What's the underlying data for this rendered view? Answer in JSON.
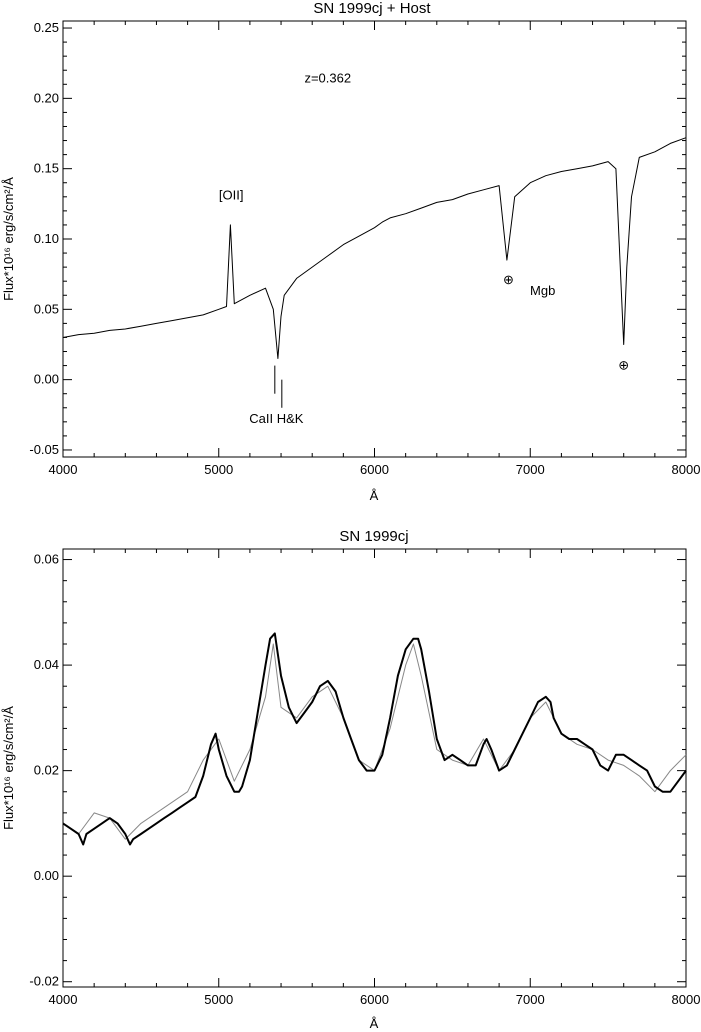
{
  "chart_data": [
    {
      "type": "line",
      "title": "SN 1999cj + Host",
      "xlabel": "Å",
      "ylabel": "Flux*10¹⁶ erg/s/cm²/Å",
      "xlim": [
        4000,
        8000
      ],
      "ylim": [
        -0.055,
        0.255
      ],
      "x_ticks": [
        4000,
        5000,
        6000,
        7000,
        8000
      ],
      "y_ticks": [
        -0.05,
        0.0,
        0.05,
        0.1,
        0.15,
        0.2,
        0.25
      ],
      "y_tick_labels": [
        "-0.05",
        "0.00",
        "0.05",
        "0.10",
        "0.15",
        "0.20",
        "0.25"
      ],
      "annotations": [
        {
          "text": "z=0.362",
          "x": 5700,
          "y": 0.214
        },
        {
          "text": "[OII]",
          "x": 5080,
          "y": 0.131
        },
        {
          "text": "CaII H&K",
          "x": 5370,
          "y": -0.028
        },
        {
          "text": "Mgb",
          "x": 7080,
          "y": 0.063
        },
        {
          "text": "⊕",
          "x": 6860,
          "y": 0.071
        },
        {
          "text": "⊕",
          "x": 7600,
          "y": 0.01
        }
      ],
      "line_marks": [
        {
          "x": 5360,
          "y1": -0.01,
          "y2": 0.01
        },
        {
          "x": 5405,
          "y1": -0.02,
          "y2": 0.0
        }
      ],
      "series": [
        {
          "color": "#000000",
          "x": [
            4000,
            4100,
            4200,
            4300,
            4400,
            4500,
            4600,
            4700,
            4800,
            4900,
            5000,
            5050,
            5075,
            5100,
            5200,
            5300,
            5350,
            5380,
            5400,
            5420,
            5500,
            5600,
            5700,
            5800,
            5900,
            6000,
            6050,
            6100,
            6200,
            6300,
            6400,
            6500,
            6600,
            6700,
            6800,
            6850,
            6900,
            7000,
            7100,
            7200,
            7300,
            7400,
            7500,
            7550,
            7600,
            7620,
            7650,
            7700,
            7800,
            7900,
            8000
          ],
          "y": [
            0.03,
            0.032,
            0.033,
            0.035,
            0.036,
            0.038,
            0.04,
            0.042,
            0.044,
            0.046,
            0.05,
            0.052,
            0.11,
            0.054,
            0.06,
            0.065,
            0.05,
            0.015,
            0.045,
            0.06,
            0.072,
            0.08,
            0.088,
            0.096,
            0.102,
            0.108,
            0.112,
            0.115,
            0.118,
            0.122,
            0.126,
            0.128,
            0.132,
            0.135,
            0.138,
            0.085,
            0.13,
            0.14,
            0.145,
            0.148,
            0.15,
            0.152,
            0.155,
            0.15,
            0.025,
            0.08,
            0.13,
            0.158,
            0.162,
            0.168,
            0.172
          ]
        }
      ]
    },
    {
      "type": "line",
      "title": "SN 1999cj",
      "xlabel": "Å",
      "ylabel": "Flux*10¹⁶ erg/s/cm²/Å",
      "xlim": [
        4000,
        8000
      ],
      "ylim": [
        -0.021,
        0.062
      ],
      "x_ticks": [
        4000,
        5000,
        6000,
        7000,
        8000
      ],
      "y_ticks": [
        -0.02,
        0.0,
        0.02,
        0.04,
        0.06
      ],
      "y_tick_labels": [
        "-0.02",
        "0.00",
        "0.02",
        "0.04",
        "0.06"
      ],
      "series": [
        {
          "color": "#888888",
          "x": [
            4000,
            4100,
            4200,
            4300,
            4400,
            4500,
            4600,
            4700,
            4800,
            4900,
            5000,
            5100,
            5200,
            5300,
            5350,
            5400,
            5500,
            5600,
            5700,
            5800,
            5900,
            6000,
            6100,
            6200,
            6250,
            6300,
            6400,
            6500,
            6600,
            6700,
            6800,
            6900,
            7000,
            7100,
            7200,
            7300,
            7400,
            7500,
            7600,
            7700,
            7800,
            7900,
            8000
          ],
          "y": [
            0.01,
            0.008,
            0.012,
            0.011,
            0.007,
            0.01,
            0.012,
            0.014,
            0.016,
            0.022,
            0.026,
            0.018,
            0.024,
            0.034,
            0.044,
            0.032,
            0.03,
            0.034,
            0.036,
            0.03,
            0.022,
            0.02,
            0.028,
            0.04,
            0.044,
            0.038,
            0.024,
            0.022,
            0.021,
            0.026,
            0.02,
            0.024,
            0.03,
            0.033,
            0.027,
            0.025,
            0.024,
            0.022,
            0.021,
            0.019,
            0.016,
            0.02,
            0.023
          ]
        },
        {
          "color": "#000000",
          "x": [
            4000,
            4050,
            4100,
            4130,
            4150,
            4200,
            4250,
            4300,
            4350,
            4400,
            4430,
            4450,
            4500,
            4550,
            4600,
            4650,
            4700,
            4750,
            4800,
            4850,
            4900,
            4950,
            4980,
            5000,
            5050,
            5100,
            5130,
            5150,
            5200,
            5250,
            5300,
            5330,
            5360,
            5400,
            5450,
            5500,
            5550,
            5600,
            5650,
            5700,
            5750,
            5800,
            5850,
            5900,
            5950,
            6000,
            6050,
            6100,
            6150,
            6200,
            6250,
            6280,
            6300,
            6350,
            6400,
            6450,
            6500,
            6550,
            6600,
            6650,
            6700,
            6720,
            6750,
            6800,
            6850,
            6900,
            6950,
            7000,
            7050,
            7100,
            7130,
            7150,
            7200,
            7250,
            7300,
            7350,
            7400,
            7450,
            7500,
            7550,
            7600,
            7650,
            7700,
            7750,
            7800,
            7850,
            7900,
            7950,
            8000
          ],
          "y": [
            0.01,
            0.009,
            0.008,
            0.006,
            0.008,
            0.009,
            0.01,
            0.011,
            0.01,
            0.008,
            0.006,
            0.007,
            0.008,
            0.009,
            0.01,
            0.011,
            0.012,
            0.013,
            0.014,
            0.015,
            0.019,
            0.025,
            0.027,
            0.024,
            0.019,
            0.016,
            0.016,
            0.017,
            0.022,
            0.031,
            0.04,
            0.045,
            0.046,
            0.038,
            0.032,
            0.029,
            0.031,
            0.033,
            0.036,
            0.037,
            0.035,
            0.03,
            0.026,
            0.022,
            0.02,
            0.02,
            0.023,
            0.03,
            0.038,
            0.043,
            0.045,
            0.045,
            0.043,
            0.035,
            0.026,
            0.022,
            0.023,
            0.022,
            0.021,
            0.021,
            0.025,
            0.026,
            0.024,
            0.02,
            0.021,
            0.024,
            0.027,
            0.03,
            0.033,
            0.034,
            0.033,
            0.03,
            0.027,
            0.026,
            0.026,
            0.025,
            0.024,
            0.021,
            0.02,
            0.023,
            0.023,
            0.022,
            0.021,
            0.02,
            0.017,
            0.016,
            0.016,
            0.018,
            0.02
          ]
        }
      ]
    }
  ]
}
